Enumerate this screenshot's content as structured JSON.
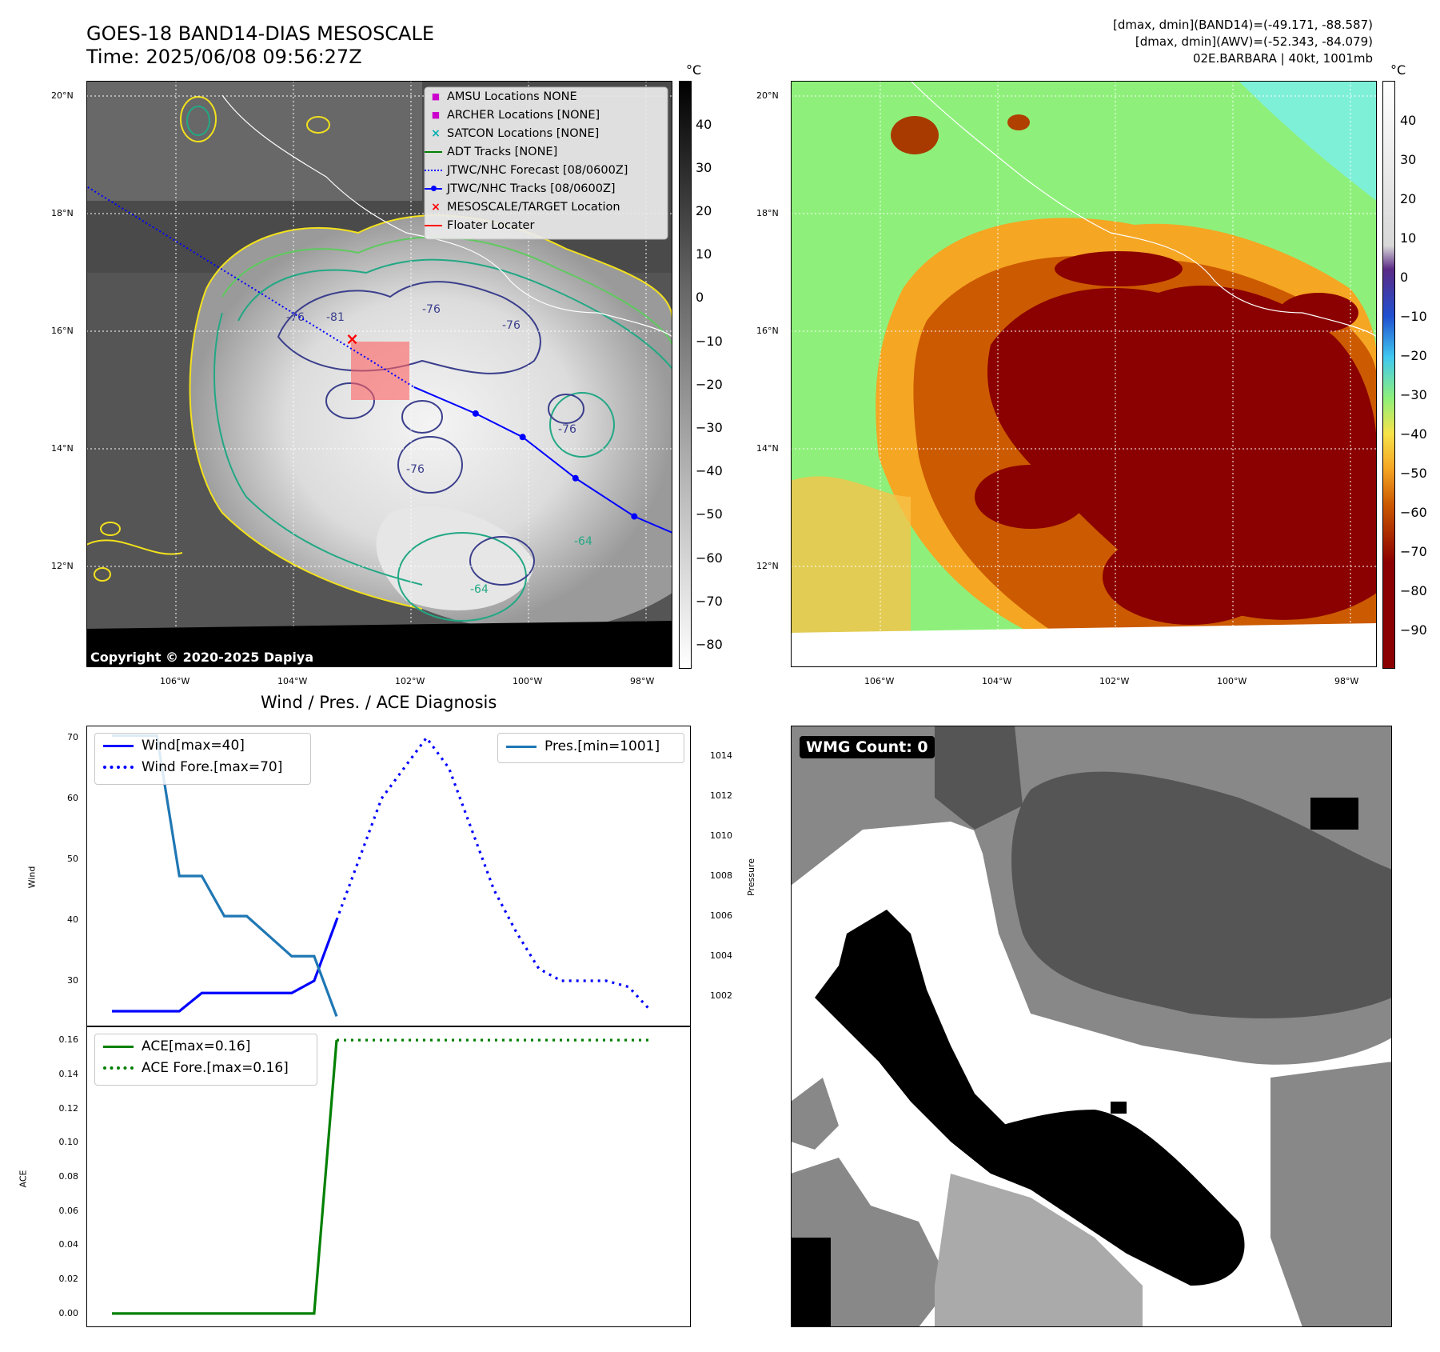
{
  "header": {
    "title_line1": "GOES-18 BAND14-DIAS MESOSCALE",
    "title_line2": "Time: 2025/06/08 09:56:27Z",
    "info_line1": "[dmax, dmin](BAND14)=(-49.171, -88.587)",
    "info_line2": "[dmax, dmin](AWV)=(-52.343, -84.079)",
    "info_line3": "02E.BARBARA | 40kt, 1001mb"
  },
  "map": {
    "lat_labels": [
      "20°N",
      "18°N",
      "16°N",
      "14°N",
      "12°N"
    ],
    "lon_labels": [
      "106°W",
      "104°W",
      "102°W",
      "100°W",
      "98°W"
    ],
    "copyright": "Copyright © 2020-2025 Dapiya",
    "contour_labels": [
      "-76",
      "-81",
      "-76",
      "-76",
      "-76",
      "-76",
      "-64",
      "-64"
    ],
    "legend": [
      {
        "label": "AMSU Locations NONE",
        "color": "#cc00cc",
        "marker": "square"
      },
      {
        "label": "ARCHER Locations [NONE]",
        "color": "#cc00cc",
        "marker": "square"
      },
      {
        "label": "SATCON Locations [NONE]",
        "color": "#00b0b0",
        "marker": "x"
      },
      {
        "label": "ADT Tracks [NONE]",
        "color": "#008000",
        "marker": "line"
      },
      {
        "label": "JTWC/NHC Forecast [08/0600Z]",
        "color": "#0000ff",
        "marker": "dotted"
      },
      {
        "label": "JTWC/NHC Tracks [08/0600Z]",
        "color": "#0000ff",
        "marker": "line-dot"
      },
      {
        "label": "MESOSCALE/TARGET Location",
        "color": "#ff0000",
        "marker": "x"
      },
      {
        "label": "Floater Locater",
        "color": "#ff0000",
        "marker": "line"
      }
    ],
    "track": [
      {
        "lon": -107.5,
        "lat": 18.45
      },
      {
        "lon": -101.95,
        "lat": 15.05
      },
      {
        "lon": -100.9,
        "lat": 14.6
      },
      {
        "lon": -100.1,
        "lat": 14.2
      },
      {
        "lon": -99.2,
        "lat": 13.5
      },
      {
        "lon": -98.2,
        "lat": 12.85
      },
      {
        "lon": -97.5,
        "lat": 12.55
      }
    ],
    "target": {
      "lon": -103.0,
      "lat": 15.85
    }
  },
  "colorbar_gray": {
    "unit": "°C",
    "ticks": [
      "40",
      "30",
      "20",
      "10",
      "0",
      "−10",
      "−20",
      "−30",
      "−40",
      "−50",
      "−60",
      "−70",
      "−80"
    ]
  },
  "colorbar_color": {
    "unit": "°C",
    "ticks": [
      "40",
      "30",
      "20",
      "10",
      "0",
      "−10",
      "−20",
      "−30",
      "−40",
      "−50",
      "−60",
      "−70",
      "−80",
      "−90"
    ]
  },
  "diagnosis": {
    "title": "Wind / Pres. / ACE Diagnosis",
    "wind_ylabel": "Wind",
    "pres_ylabel": "Pressure",
    "ace_ylabel": "ACE",
    "legend_wind": "Wind[max=40]",
    "legend_wind_fore": "Wind Fore.[max=70]",
    "legend_pres": "Pres.[min=1001]",
    "legend_ace": "ACE[max=0.16]",
    "legend_ace_fore": "ACE Fore.[max=0.16]",
    "wind_ticks": [
      "70",
      "60",
      "50",
      "40",
      "30"
    ],
    "pres_ticks": [
      "1014",
      "1012",
      "1010",
      "1008",
      "1006",
      "1004",
      "1002"
    ],
    "ace_ticks": [
      "0.16",
      "0.14",
      "0.12",
      "0.10",
      "0.08",
      "0.06",
      "0.04",
      "0.02",
      "0.00"
    ]
  },
  "chart_data": [
    {
      "type": "line",
      "title": "Wind / Pres. / ACE Diagnosis",
      "ylabel": "Wind",
      "ylim": [
        22.5,
        72
      ],
      "series": [
        {
          "name": "Wind[max=40]",
          "color": "#0000ff",
          "style": "solid",
          "x": [
            0,
            1,
            2,
            3,
            4,
            5,
            6,
            7,
            8,
            9,
            10
          ],
          "values": [
            25,
            25,
            25,
            25,
            28,
            28,
            28,
            28,
            28,
            30,
            40
          ]
        },
        {
          "name": "Wind Fore.[max=70]",
          "color": "#0000ff",
          "style": "dotted",
          "x": [
            10,
            11,
            12,
            13,
            14,
            15,
            16,
            17,
            18,
            19,
            20,
            21,
            22,
            23,
            24
          ],
          "values": [
            40,
            50,
            60,
            65,
            70,
            65,
            55,
            45,
            38,
            32,
            30,
            30,
            30,
            29,
            25
          ]
        }
      ]
    },
    {
      "type": "line",
      "ylabel": "Pressure",
      "ylim": [
        1000.5,
        1015.5
      ],
      "series": [
        {
          "name": "Pres.[min=1001]",
          "color": "#1f77b4",
          "style": "solid",
          "x": [
            0,
            1,
            2,
            3,
            4,
            5,
            6,
            7,
            8,
            9,
            10
          ],
          "values": [
            1015,
            1015,
            1015,
            1008,
            1008,
            1006,
            1006,
            1005,
            1004,
            1004,
            1001
          ]
        }
      ]
    },
    {
      "type": "line",
      "ylabel": "ACE",
      "ylim": [
        -0.008,
        0.168
      ],
      "series": [
        {
          "name": "ACE[max=0.16]",
          "color": "#008000",
          "style": "solid",
          "x": [
            0,
            9,
            10
          ],
          "values": [
            0,
            0,
            0.16
          ]
        },
        {
          "name": "ACE Fore.[max=0.16]",
          "color": "#008000",
          "style": "dotted",
          "x": [
            10,
            24
          ],
          "values": [
            0.16,
            0.16
          ]
        }
      ]
    }
  ],
  "wmg": {
    "label": "WMG Count: 0"
  }
}
